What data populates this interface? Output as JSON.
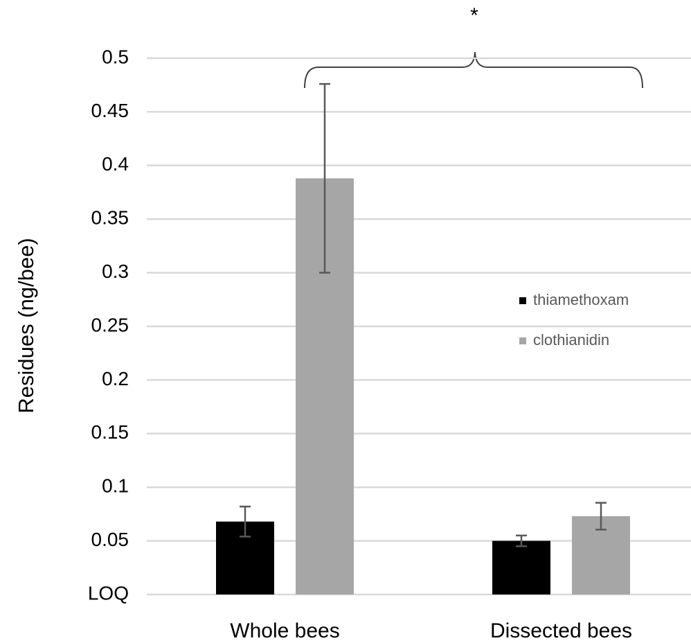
{
  "chart_data": {
    "type": "bar",
    "y_label": "Residues  (ng/bee)",
    "annotation": "*",
    "categories": [
      "Whole bees",
      "Dissected bees"
    ],
    "series": [
      {
        "name": "thiamethoxam",
        "color": "#000000",
        "values": [
          0.068,
          0.05
        ],
        "errors": [
          0.014,
          0.005
        ]
      },
      {
        "name": "clothianidin",
        "color": "#a6a6a6",
        "values": [
          0.388,
          0.073
        ],
        "errors": [
          0.088,
          0.0125
        ]
      }
    ],
    "ylim": [
      0,
      0.5
    ],
    "yticks": [
      {
        "value": 0,
        "label": "LOQ"
      },
      0.05,
      0.1,
      0.15,
      0.2,
      0.25,
      0.3,
      0.35,
      0.4,
      0.45,
      0.5
    ],
    "grid": true
  }
}
